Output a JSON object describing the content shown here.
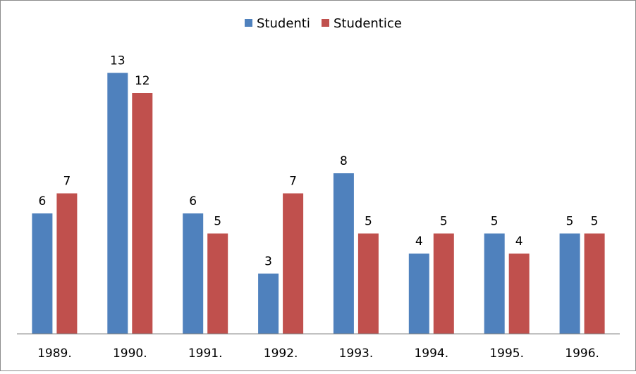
{
  "chart_data": {
    "type": "bar",
    "title": "",
    "xlabel": "",
    "ylabel": "",
    "categories": [
      "1989.",
      "1990.",
      "1991.",
      "1992.",
      "1993.",
      "1994.",
      "1995.",
      "1996."
    ],
    "series": [
      {
        "name": "Studenti",
        "values": [
          6,
          13,
          6,
          3,
          8,
          4,
          5,
          5
        ],
        "color": "#4F81BD"
      },
      {
        "name": "Studentice",
        "values": [
          7,
          12,
          5,
          7,
          5,
          5,
          4,
          5
        ],
        "color": "#C0504D"
      }
    ],
    "ylim": [
      0,
      14
    ],
    "grid": false,
    "legend_position": "top-center",
    "data_labels": true
  }
}
